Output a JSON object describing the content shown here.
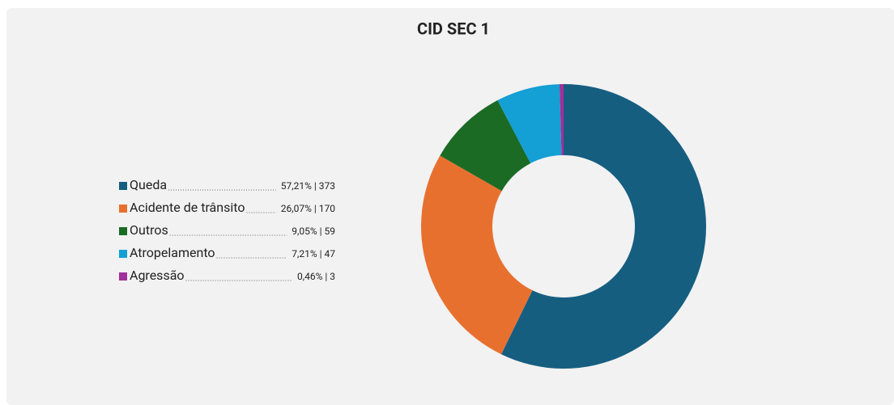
{
  "chart_data": {
    "type": "donut",
    "title": "CID SEC 1",
    "categories": [
      "Queda",
      "Acidente de trânsito",
      "Outros",
      "Atropelamento",
      "Agressão"
    ],
    "values": [
      373,
      170,
      59,
      47,
      3
    ],
    "value_labels": [
      "57,21% | 373",
      "26,07% | 170",
      "9,05% | 59",
      "7,21% | 47",
      "0,46% | 3"
    ],
    "colors": [
      "#165e80",
      "#e8702f",
      "#1b6b25",
      "#149fd5",
      "#a0309a"
    ],
    "legend": "left"
  }
}
